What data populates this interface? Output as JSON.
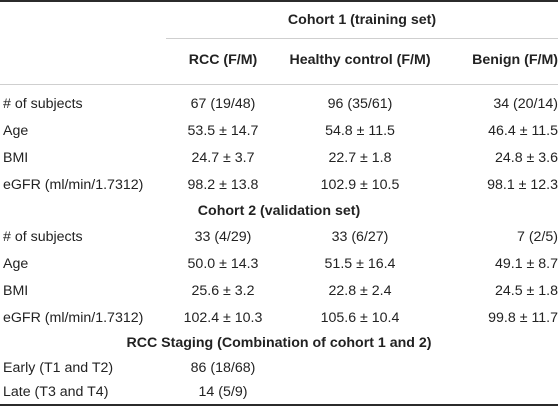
{
  "header": {
    "cohort1_title": "Cohort 1 (training set)",
    "col_rcc": "RCC (F/M)",
    "col_healthy": "Healthy control (F/M)",
    "col_benign": "Benign (F/M)"
  },
  "cohort1": {
    "rows": [
      {
        "label": "# of subjects",
        "rcc": "67 (19/48)",
        "healthy": "96 (35/61)",
        "benign": "34 (20/14)"
      },
      {
        "label": "Age",
        "rcc": "53.5 ± 14.7",
        "healthy": "54.8 ± 11.5",
        "benign": "46.4 ± 11.5"
      },
      {
        "label": "BMI",
        "rcc": "24.7 ± 3.7",
        "healthy": "22.7 ± 1.8",
        "benign": "24.8 ± 3.6"
      },
      {
        "label": "eGFR (ml/min/1.7312)",
        "rcc": "98.2 ± 13.8",
        "healthy": "102.9 ± 10.5",
        "benign": "98.1 ± 12.3"
      }
    ]
  },
  "cohort2": {
    "title": "Cohort 2 (validation set)",
    "rows": [
      {
        "label": "# of subjects",
        "rcc": "33 (4/29)",
        "healthy": "33 (6/27)",
        "benign": "7 (2/5)"
      },
      {
        "label": "Age",
        "rcc": "50.0 ± 14.3",
        "healthy": "51.5 ± 16.4",
        "benign": "49.1 ± 8.7"
      },
      {
        "label": "BMI",
        "rcc": "25.6 ± 3.2",
        "healthy": "22.8 ± 2.4",
        "benign": "24.5 ± 1.8"
      },
      {
        "label": "eGFR (ml/min/1.7312)",
        "rcc": "102.4 ± 10.3",
        "healthy": "105.6 ± 10.4",
        "benign": "99.8 ± 11.7"
      }
    ]
  },
  "staging": {
    "title": "RCC Staging (Combination of cohort 1 and 2)",
    "rows": [
      {
        "label": "Early (T1 and T2)",
        "rcc": "86 (18/68)"
      },
      {
        "label": "Late (T3 and T4)",
        "rcc": "14 (5/9)"
      }
    ]
  }
}
